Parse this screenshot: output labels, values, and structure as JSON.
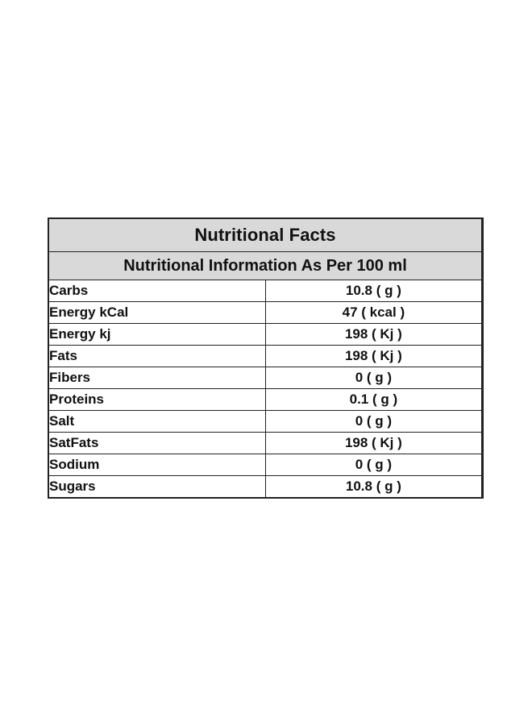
{
  "table": {
    "title": "Nutritional Facts",
    "subtitle": "Nutritional Information As Per 100 ml",
    "rows": [
      {
        "name": "Carbs",
        "value": "10.8 ( g )"
      },
      {
        "name": "Energy kCal",
        "value": "47 ( kcal )"
      },
      {
        "name": "Energy kj",
        "value": "198 ( Kj )"
      },
      {
        "name": "Fats",
        "value": "198 ( Kj )"
      },
      {
        "name": "Fibers",
        "value": "0 ( g )"
      },
      {
        "name": "Proteins",
        "value": "0.1 ( g )"
      },
      {
        "name": "Salt",
        "value": "0 ( g )"
      },
      {
        "name": "SatFats",
        "value": "198 ( Kj )"
      },
      {
        "name": "Sodium",
        "value": "0 ( g )"
      },
      {
        "name": "Sugars",
        "value": "10.8 ( g )"
      }
    ]
  },
  "colors": {
    "header_background": "#d9d9d9",
    "border": "#222222",
    "text": "#111111",
    "page_background": "#ffffff"
  }
}
